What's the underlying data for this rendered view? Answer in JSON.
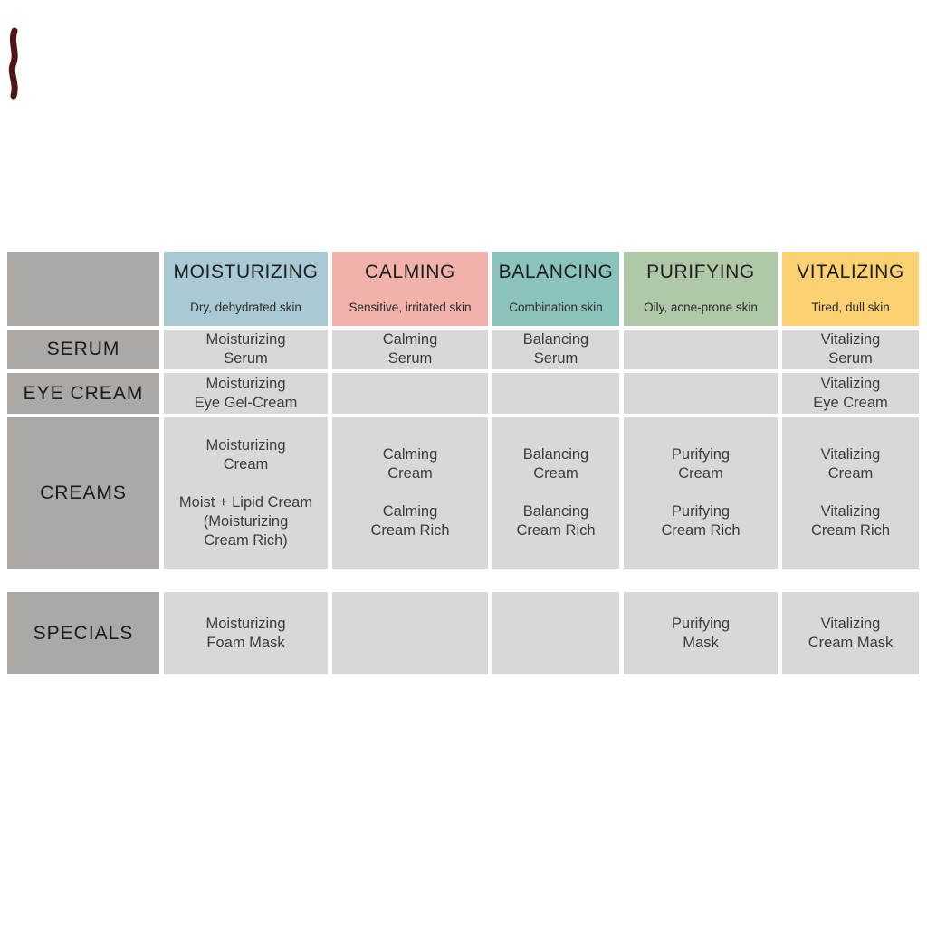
{
  "page": {
    "background": "#ffffff",
    "corner_mark_color": "#4f1515"
  },
  "table": {
    "row_label_bg": "#aba8a6",
    "cell_bg": "#d9d8d7",
    "columns": [
      {
        "key": "moisturizing",
        "label": "MOISTURIZING",
        "subtitle": "Dry, dehydrated skin",
        "color": "#a9cad5"
      },
      {
        "key": "calming",
        "label": "CALMING",
        "subtitle": "Sensitive, irritated skin",
        "color": "#f1b2ac"
      },
      {
        "key": "balancing",
        "label": "BALANCING",
        "subtitle": "Combination skin",
        "color": "#8ac3bb"
      },
      {
        "key": "purifying",
        "label": "PURIFYING",
        "subtitle": "Oily, acne-prone skin",
        "color": "#afc9a8"
      },
      {
        "key": "vitalizing",
        "label": "VITALIZING",
        "subtitle": "Tired, dull skin",
        "color": "#fcd172"
      }
    ],
    "rows": [
      {
        "key": "serum",
        "label": "SERUM",
        "cells": [
          [
            "Moisturizing",
            "Serum"
          ],
          [
            "Calming",
            "Serum"
          ],
          [
            "Balancing",
            "Serum"
          ],
          [],
          [
            "Vitalizing",
            "Serum"
          ]
        ]
      },
      {
        "key": "eye-cream",
        "label": "EYE CREAM",
        "cells": [
          [
            "Moisturizing",
            "Eye Gel-Cream"
          ],
          [],
          [],
          [],
          [
            "Vitalizing",
            "Eye Cream"
          ]
        ]
      },
      {
        "key": "creams",
        "label": "CREAMS",
        "cells": [
          [
            "Moisturizing",
            "Cream",
            "",
            "Moist + Lipid Cream",
            "(Moisturizing",
            "Cream Rich)"
          ],
          [
            "Calming",
            "Cream",
            "",
            "Calming",
            "Cream Rich"
          ],
          [
            "Balancing",
            "Cream",
            "",
            "Balancing",
            "Cream Rich"
          ],
          [
            "Purifying",
            "Cream",
            "",
            "Purifying",
            "Cream Rich"
          ],
          [
            "Vitalizing",
            "Cream",
            "",
            "Vitalizing",
            "Cream Rich"
          ]
        ]
      },
      {
        "key": "specials",
        "label": "SPECIALS",
        "cells": [
          [
            "Moisturizing",
            "Foam Mask"
          ],
          [],
          [],
          [
            "Purifying",
            "Mask"
          ],
          [
            "Vitalizing",
            "Cream Mask"
          ]
        ]
      }
    ]
  },
  "chart_data": {
    "type": "table",
    "columns": [
      "",
      "MOISTURIZING",
      "CALMING",
      "BALANCING",
      "PURIFYING",
      "VITALIZING"
    ],
    "column_subtitles": [
      "",
      "Dry, dehydrated skin",
      "Sensitive, irritated skin",
      "Combination skin",
      "Oily, acne-prone skin",
      "Tired, dull skin"
    ],
    "column_colors": [
      "#aba8a6",
      "#a9cad5",
      "#f1b2ac",
      "#8ac3bb",
      "#afc9a8",
      "#fcd172"
    ],
    "rows": [
      [
        "SERUM",
        "Moisturizing Serum",
        "Calming Serum",
        "Balancing Serum",
        "",
        "Vitalizing Serum"
      ],
      [
        "EYE CREAM",
        "Moisturizing Eye Gel-Cream",
        "",
        "",
        "",
        "Vitalizing Eye Cream"
      ],
      [
        "CREAMS",
        "Moisturizing Cream; Moist + Lipid Cream (Moisturizing Cream Rich)",
        "Calming Cream; Calming Cream Rich",
        "Balancing Cream; Balancing Cream Rich",
        "Purifying Cream; Purifying Cream Rich",
        "Vitalizing Cream; Vitalizing Cream Rich"
      ],
      [
        "SPECIALS",
        "Moisturizing Foam Mask",
        "",
        "",
        "Purifying Mask",
        "Vitalizing Cream Mask"
      ]
    ]
  }
}
